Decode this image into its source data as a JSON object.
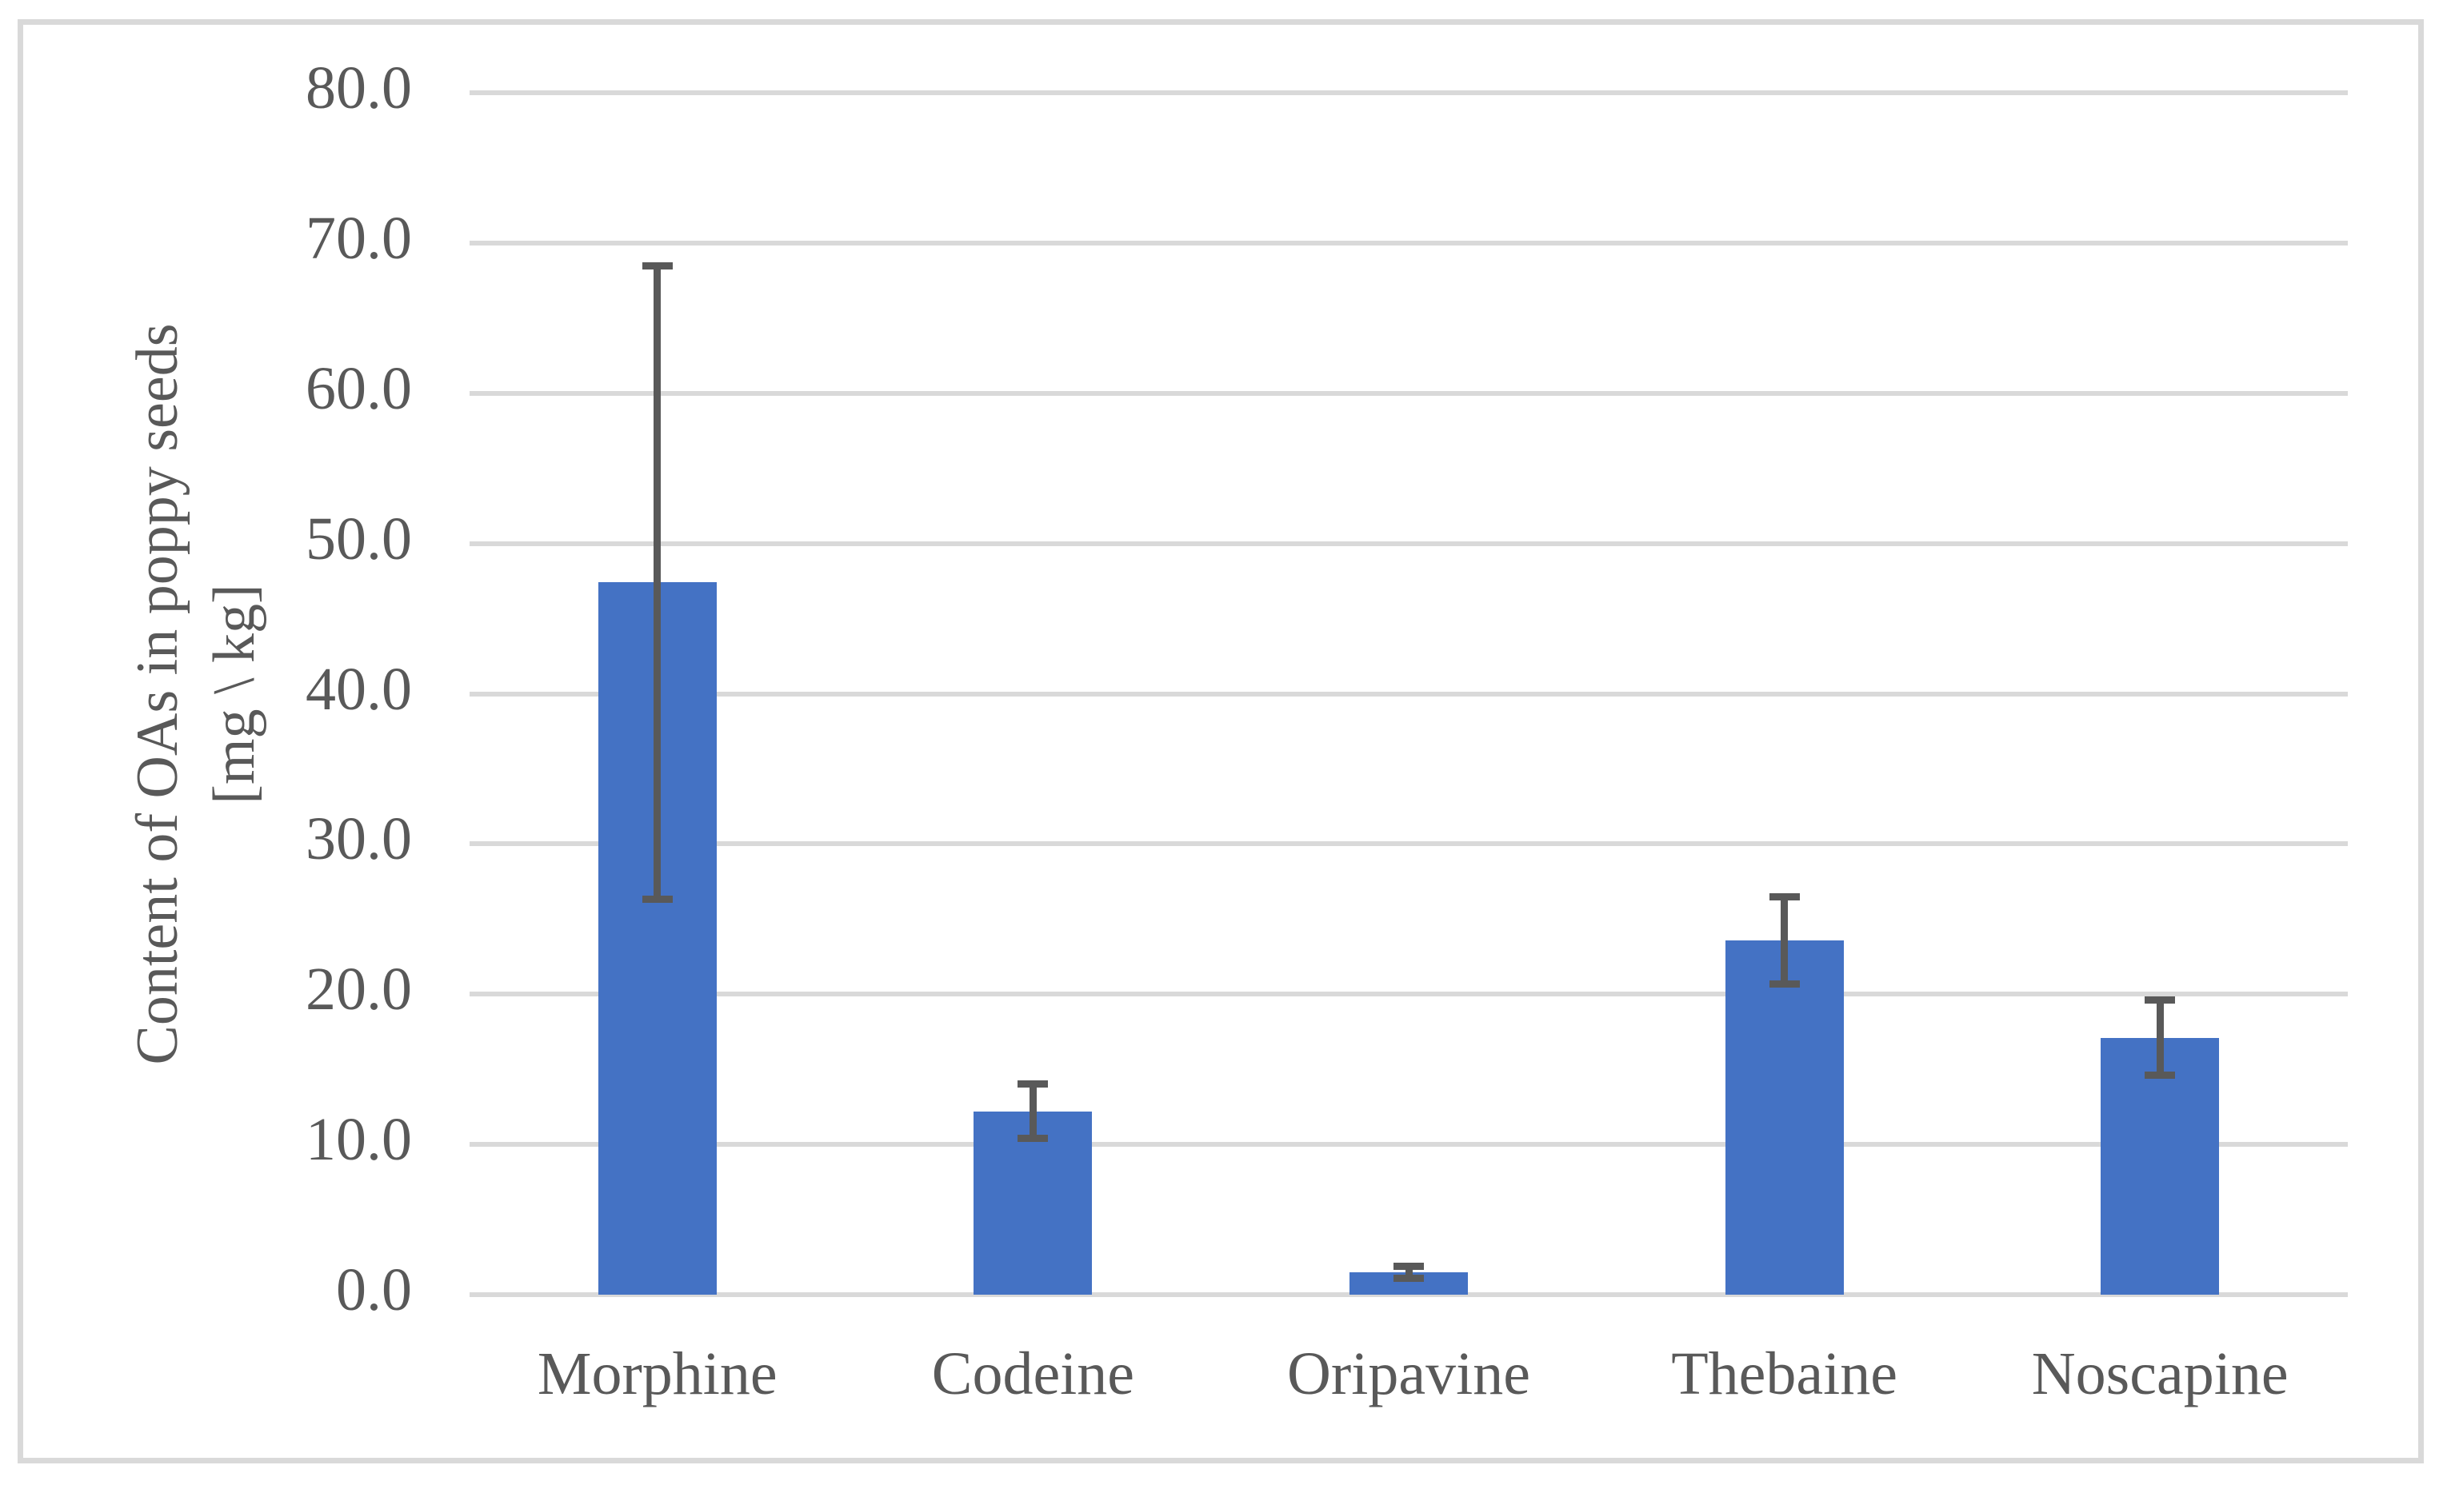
{
  "chart_data": {
    "type": "bar",
    "title": "",
    "categories": [
      "Morphine",
      "Codeine",
      "Oripavine",
      "Thebaine",
      "Noscapine"
    ],
    "values": [
      47.4,
      12.2,
      1.5,
      23.6,
      17.1
    ],
    "error_plus": [
      21.1,
      1.8,
      0.4,
      2.9,
      2.5
    ],
    "error_minus": [
      21.1,
      1.8,
      0.4,
      2.9,
      2.5
    ],
    "ylabel_line1": "Content of OAs in poppy seeds",
    "ylabel_line2": "[mg \\ kg]",
    "xlabel": "",
    "ylim": [
      0,
      80
    ],
    "ytick_step": 10,
    "ytick_labels": [
      "80.0",
      "70.0",
      "60.0",
      "50.0",
      "40.0",
      "30.0",
      "20.0",
      "10.0",
      "0.0"
    ],
    "grid": true,
    "legend": "none",
    "bar_color": "#4472c4",
    "error_bar_color": "#595959",
    "gridline_color": "#d9d9d9",
    "text_color": "#595959",
    "frame_color": "#d9d9d9",
    "background_color": "#ffffff"
  }
}
